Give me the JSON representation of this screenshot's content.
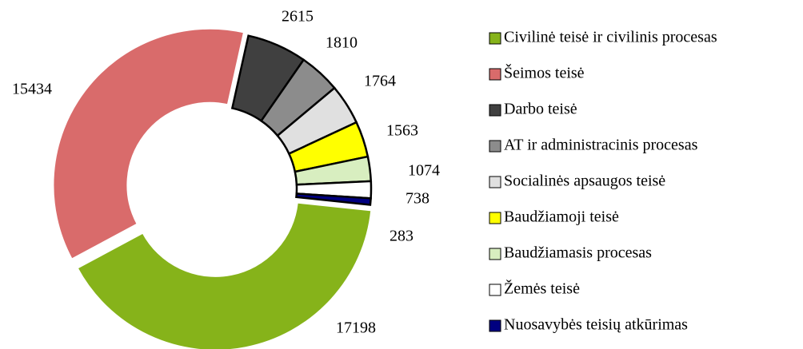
{
  "chart_data": {
    "type": "donut",
    "categories": [
      "Civilinė teisė ir civilinis procesas",
      "Šeimos teisė",
      "Darbo teisė",
      "AT ir administracinis procesas",
      "Socialinės apsaugos teisė",
      "Baudžiamoji teisė",
      "Baudžiamasis procesas",
      "Žemės teisė",
      "Nuosavybės teisių atkūrimas"
    ],
    "values": [
      17198,
      15434,
      2615,
      1810,
      1764,
      1563,
      1074,
      738,
      283
    ],
    "colors": [
      "#86b31a",
      "#d96b6b",
      "#404040",
      "#8c8c8c",
      "#e0e0e0",
      "#ffff00",
      "#d8eec0",
      "#ffffff",
      "#000080"
    ],
    "legend": "right"
  }
}
